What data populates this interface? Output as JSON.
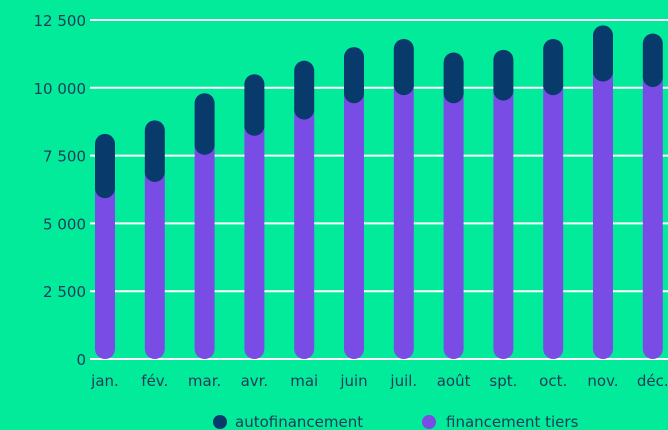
{
  "chart_data": {
    "type": "bar",
    "stacked": true,
    "categories": [
      "jan.",
      "fév.",
      "mar.",
      "avr.",
      "mai",
      "juin",
      "juil.",
      "août",
      "spt.",
      "oct.",
      "nov.",
      "déc."
    ],
    "series": [
      {
        "name": "financement tiers",
        "color": "#7a4ce6",
        "values": [
          6300,
          6900,
          7900,
          8600,
          9200,
          9800,
          10100,
          9800,
          9900,
          10100,
          10600,
          10400
        ]
      },
      {
        "name": "autofinancement",
        "color": "#083a6b",
        "values": [
          2000,
          1900,
          1900,
          1900,
          1800,
          1700,
          1700,
          1500,
          1500,
          1700,
          1700,
          1600
        ]
      }
    ],
    "yticks": [
      "0",
      "2 500",
      "5 000",
      "7 500",
      "10 000",
      "12 500"
    ],
    "ylim": [
      0,
      12500
    ],
    "grid": true,
    "legend": "bottom",
    "legend_items": [
      {
        "label": "autofinancement",
        "color": "#083a6b"
      },
      {
        "label": "financement tiers",
        "color": "#7a4ce6"
      }
    ]
  }
}
